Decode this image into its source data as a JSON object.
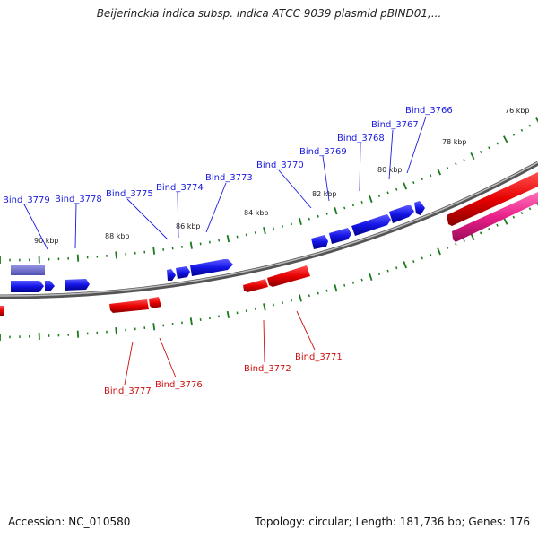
{
  "title": "Beijerinckia indica subsp. indica ATCC 9039 plasmid pBIND01,...",
  "footer": {
    "accession_text": "Accession: NC_010580",
    "summary_text": "Topology: circular; Length: 181,736 bp; Genes: 176"
  },
  "colors": {
    "forward_gene": "#1010e0",
    "reverse_gene": "#e00000",
    "highlight_gene": "#e8208a",
    "faded_gene": "#7070cc",
    "backbone": "#8a8a8a",
    "tick": "#1a7a1a"
  },
  "kbp_labels": [
    "76 kbp",
    "78 kbp",
    "80 kbp",
    "82 kbp",
    "84 kbp",
    "86 kbp",
    "88 kbp",
    "90 kbp"
  ],
  "blue_labels": [
    "Bind_3766",
    "Bind_3767",
    "Bind_3768",
    "Bind_3769",
    "Bind_3770",
    "Bind_3773",
    "Bind_3774",
    "Bind_3775",
    "Bind_3778",
    "Bind_3779"
  ],
  "red_labels": [
    "Bind_3771",
    "Bind_3772",
    "Bind_3776",
    "Bind_3777"
  ]
}
